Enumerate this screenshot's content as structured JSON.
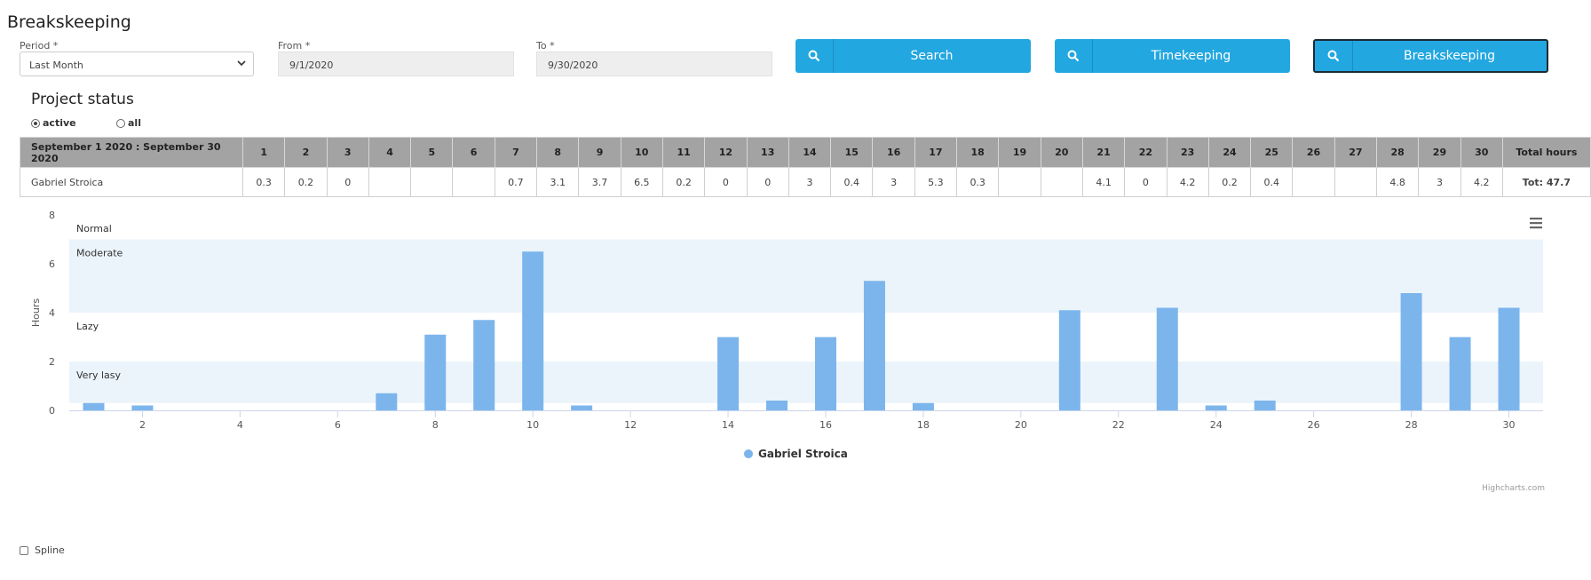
{
  "page": {
    "title": "Breakskeeping"
  },
  "filters": {
    "period_label": "Period *",
    "period_value": "Last Month",
    "from_label": "From *",
    "from_value": "9/1/2020",
    "to_label": "To *",
    "to_value": "9/30/2020"
  },
  "buttons": {
    "search": "Search",
    "timekeeping": "Timekeeping",
    "breakskeeping": "Breakskeeping",
    "button_color": "#22a7e0"
  },
  "project_status": {
    "title": "Project status",
    "radio_active": "active",
    "radio_all": "all",
    "selected": "active"
  },
  "table": {
    "period_header": "September 1 2020 : September 30 2020",
    "day_headers": [
      "1",
      "2",
      "3",
      "4",
      "5",
      "6",
      "7",
      "8",
      "9",
      "10",
      "11",
      "12",
      "13",
      "14",
      "15",
      "16",
      "17",
      "18",
      "19",
      "20",
      "21",
      "22",
      "23",
      "24",
      "25",
      "26",
      "27",
      "28",
      "29",
      "30"
    ],
    "total_header": "Total hours",
    "rows": [
      {
        "name": "Gabriel Stroica",
        "cells": [
          "0.3",
          "0.2",
          "0",
          "",
          "",
          "",
          "0.7",
          "3.1",
          "3.7",
          "6.5",
          "0.2",
          "0",
          "0",
          "3",
          "0.4",
          "3",
          "5.3",
          "0.3",
          "",
          "",
          "4.1",
          "0",
          "4.2",
          "0.2",
          "0.4",
          "",
          "",
          "4.8",
          "3",
          "4.2"
        ],
        "total": "Tot: 47.7"
      }
    ]
  },
  "chart_data": {
    "type": "bar",
    "ylabel": "Hours",
    "ylim": [
      0,
      8
    ],
    "y_ticks": [
      "0",
      "2",
      "4",
      "6",
      "8"
    ],
    "x_ticks": [
      "2",
      "4",
      "6",
      "8",
      "10",
      "12",
      "14",
      "16",
      "18",
      "20",
      "22",
      "24",
      "26",
      "28",
      "30"
    ],
    "x": [
      1,
      2,
      3,
      4,
      5,
      6,
      7,
      8,
      9,
      10,
      11,
      12,
      13,
      14,
      15,
      16,
      17,
      18,
      19,
      20,
      21,
      22,
      23,
      24,
      25,
      26,
      27,
      28,
      29,
      30
    ],
    "series": [
      {
        "name": "Gabriel Stroica",
        "color": "#7cb5ec",
        "values": [
          0.3,
          0.2,
          0,
          0,
          0,
          0,
          0.7,
          3.1,
          3.7,
          6.5,
          0.2,
          0,
          0,
          3,
          0.4,
          3,
          5.3,
          0.3,
          0,
          0,
          4.1,
          0,
          4.2,
          0.2,
          0.4,
          0,
          0,
          4.8,
          3,
          4.2
        ]
      }
    ],
    "plot_bands": [
      {
        "label": "Very lasy",
        "from": 0.3,
        "to": 2,
        "color": "#ebf4fb"
      },
      {
        "label": "Lazy",
        "from": 2,
        "to": 4,
        "color": "#ffffff"
      },
      {
        "label": "Moderate",
        "from": 4,
        "to": 7,
        "color": "#ebf4fb"
      },
      {
        "label": "Normal",
        "from": 7,
        "to": 8,
        "color": "#ffffff"
      }
    ],
    "legend": "bottom-center",
    "credits": "Highcharts.com",
    "menu_icon": "hamburger-menu-icon"
  },
  "options": {
    "spline_label": "Spline",
    "spline_checked": false
  }
}
